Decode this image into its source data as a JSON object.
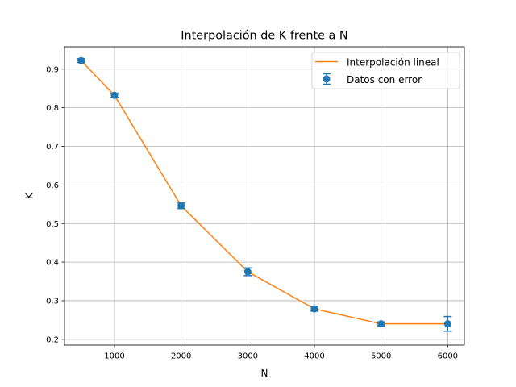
{
  "chart_data": {
    "type": "line",
    "title": "Interpolación de K frente a N",
    "xlabel": "N",
    "ylabel": "K",
    "xlim": [
      250,
      6250
    ],
    "ylim": [
      0.185,
      0.958
    ],
    "xticks": [
      1000,
      2000,
      3000,
      4000,
      5000,
      6000
    ],
    "yticks": [
      0.2,
      0.3,
      0.4,
      0.5,
      0.6,
      0.7,
      0.8,
      0.9
    ],
    "grid": true,
    "legend_position": "top-right",
    "series": [
      {
        "name": "Interpolación lineal",
        "kind": "line",
        "color": "#ff7f0e",
        "x": [
          500,
          1000,
          2000,
          3000,
          4000,
          5000,
          6000
        ],
        "y": [
          0.922,
          0.832,
          0.546,
          0.375,
          0.279,
          0.24,
          0.24
        ]
      },
      {
        "name": "Datos con error",
        "kind": "errorbar",
        "color": "#1f77b4",
        "x": [
          500,
          1000,
          2000,
          3000,
          4000,
          5000,
          6000
        ],
        "y": [
          0.922,
          0.832,
          0.546,
          0.375,
          0.279,
          0.24,
          0.24
        ],
        "yerr": [
          0.005,
          0.005,
          0.007,
          0.01,
          0.006,
          0.005,
          0.019
        ]
      }
    ]
  }
}
